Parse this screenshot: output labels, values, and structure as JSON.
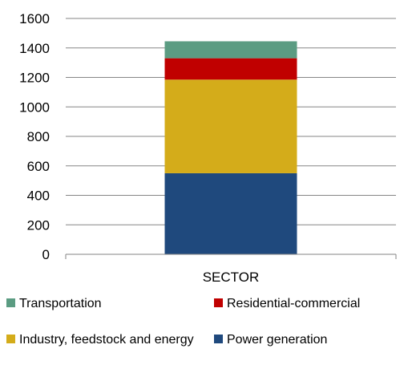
{
  "chart_data": {
    "type": "bar",
    "stacked": true,
    "categories": [
      "SECTOR"
    ],
    "series": [
      {
        "name": "Power generation",
        "values": [
          550
        ],
        "color": "#1F497D"
      },
      {
        "name": "Industry, feedstock and energy",
        "values": [
          635
        ],
        "color": "#D4AC1A"
      },
      {
        "name": "Residential-commercial",
        "values": [
          145
        ],
        "color": "#C00000"
      },
      {
        "name": "Transportation",
        "values": [
          115
        ],
        "color": "#5B9C82"
      }
    ],
    "ylim": [
      0,
      1600
    ],
    "yticks": [
      "0",
      "200",
      "400",
      "600",
      "800",
      "1000",
      "1200",
      "1400",
      "1600"
    ],
    "grid": true,
    "legend_position": "bottom",
    "legend_order": [
      "Transportation",
      "Residential-commercial",
      "Industry, feedstock and energy",
      "Power generation"
    ],
    "title": "",
    "xlabel": "",
    "ylabel": ""
  }
}
